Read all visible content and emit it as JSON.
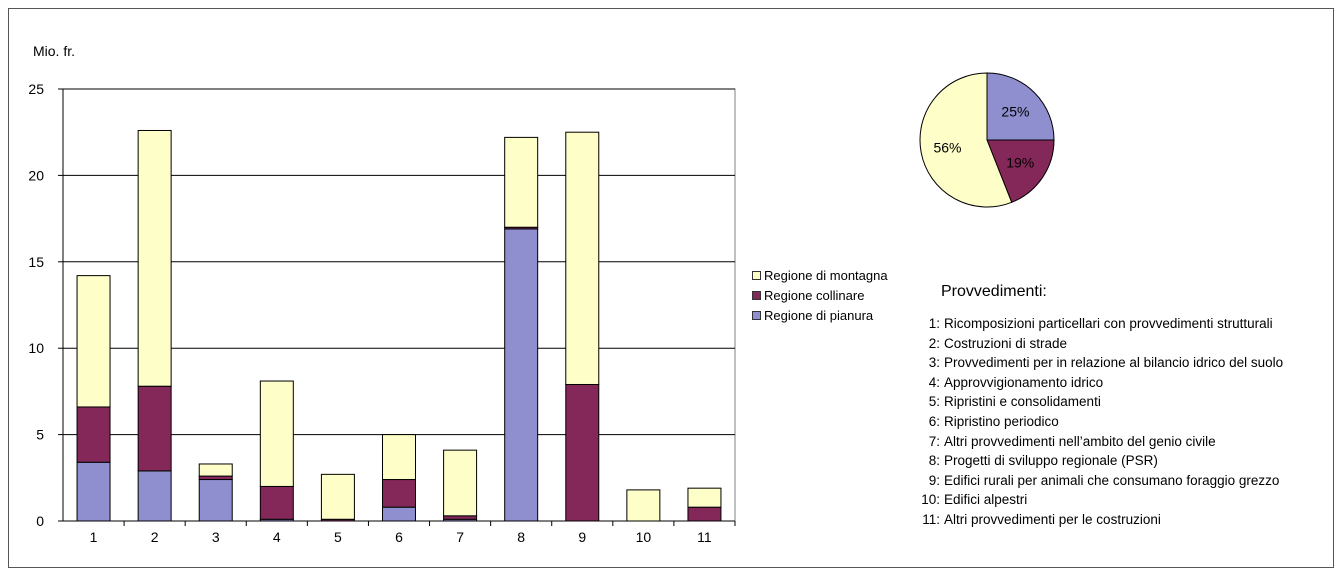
{
  "chart_data": [
    {
      "type": "bar",
      "stacked": true,
      "title": "",
      "ylabel": "Mio. fr.",
      "xlabel": "",
      "ylim": [
        0,
        25
      ],
      "yticks": [
        "0",
        "5",
        "10",
        "15",
        "20",
        "25"
      ],
      "grid": true,
      "categories": [
        "1",
        "2",
        "3",
        "4",
        "5",
        "6",
        "7",
        "8",
        "9",
        "10",
        "11"
      ],
      "series": [
        {
          "name": "Regione di pianura",
          "color": "#8f8fcf",
          "values": [
            3.4,
            2.9,
            2.4,
            0.1,
            0.0,
            0.8,
            0.1,
            16.9,
            0.0,
            0.0,
            0.0
          ]
        },
        {
          "name": "Regione collinare",
          "color": "#84285a",
          "values": [
            3.2,
            4.9,
            0.2,
            1.9,
            0.1,
            1.6,
            0.2,
            0.1,
            7.9,
            0.0,
            0.8
          ]
        },
        {
          "name": "Regione di montagna",
          "color": "#fefec8",
          "values": [
            7.6,
            14.8,
            0.7,
            6.1,
            2.6,
            2.6,
            3.8,
            5.2,
            14.6,
            1.8,
            1.1
          ]
        }
      ],
      "legend_placement": "right",
      "legend_order": [
        "Regione di montagna",
        "Regione collinare",
        "Regione di pianura"
      ]
    },
    {
      "type": "pie",
      "slices": [
        {
          "label": "25%",
          "value": 25,
          "color": "#8f8fcf",
          "region": "Regione di pianura"
        },
        {
          "label": "19%",
          "value": 19,
          "color": "#84285a",
          "region": "Regione collinare"
        },
        {
          "label": "56%",
          "value": 56,
          "color": "#fefec8",
          "region": "Regione di montagna"
        }
      ]
    }
  ],
  "measures": {
    "title": "Provvedimenti:",
    "items": [
      {
        "num": "1:",
        "text": "Ricomposizioni particellari con provvedimenti strutturali"
      },
      {
        "num": "2:",
        "text": "Costruzioni di strade"
      },
      {
        "num": "3:",
        "text": "Provvedimenti per in relazione al bilancio idrico del suolo"
      },
      {
        "num": "4:",
        "text": "Approvvigionamento idrico"
      },
      {
        "num": "5:",
        "text": "Ripristini e consolidamenti"
      },
      {
        "num": "6:",
        "text": "Ripristino periodico"
      },
      {
        "num": "7:",
        "text": "Altri provvedimenti nell’ambito del genio civile"
      },
      {
        "num": "8:",
        "text": "Progetti di sviluppo regionale (PSR)"
      },
      {
        "num": "9:",
        "text": "Edifici rurali per animali che consumano foraggio grezzo"
      },
      {
        "num": "10:",
        "text": "Edifici alpestri"
      },
      {
        "num": "11:",
        "text": "Altri provvedimenti per le costruzioni"
      }
    ]
  }
}
